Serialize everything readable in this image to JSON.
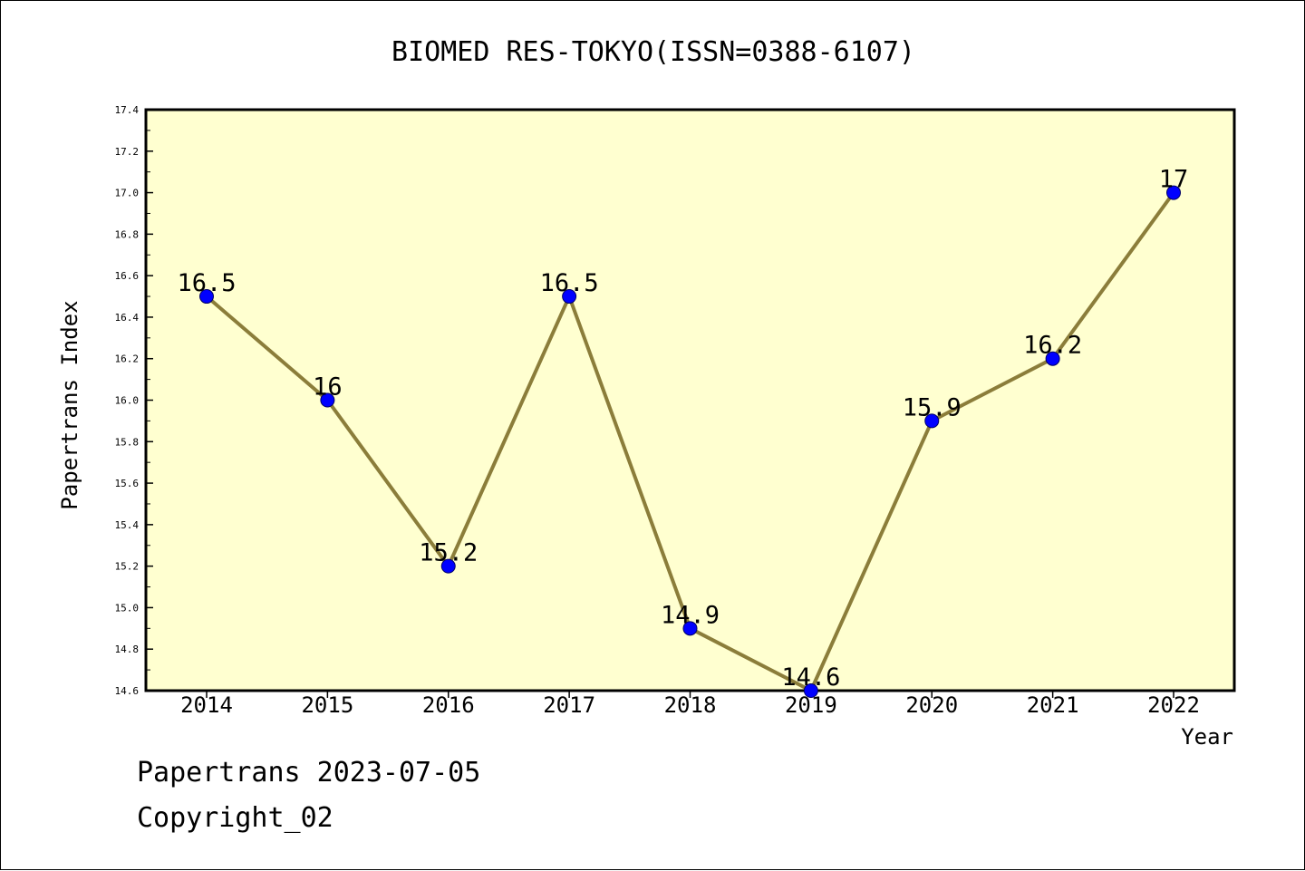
{
  "chart_data": {
    "type": "line",
    "title": "BIOMED RES-TOKYO(ISSN=0388-6107)",
    "xlabel": "Year",
    "ylabel": "Papertrans Index",
    "categories": [
      "2014",
      "2015",
      "2016",
      "2017",
      "2018",
      "2019",
      "2020",
      "2021",
      "2022"
    ],
    "series": [
      {
        "values": [
          16.5,
          16.0,
          15.2,
          16.5,
          14.9,
          14.6,
          15.9,
          16.2,
          17.0
        ],
        "data_labels": [
          "16.5",
          "16",
          "15.2",
          "16.5",
          "14.9",
          "14.6",
          "15.9",
          "16.2",
          "17"
        ]
      }
    ],
    "ylim": [
      14.6,
      17.4
    ],
    "yticks": [
      "14.6",
      "14.8",
      "15.0",
      "15.2",
      "15.4",
      "15.6",
      "15.8",
      "16.0",
      "16.2",
      "16.4",
      "16.6",
      "16.8",
      "17.0",
      "17.2",
      "17.4"
    ],
    "grid": false,
    "legend": "none",
    "colors": {
      "plot_background": "#ffffd0",
      "line": "#8b7d3a",
      "marker": "#0000ff",
      "text": "#000000"
    }
  },
  "footer": {
    "date_text": "Papertrans 2023-07-05",
    "copyright_text": "Copyright_02"
  }
}
